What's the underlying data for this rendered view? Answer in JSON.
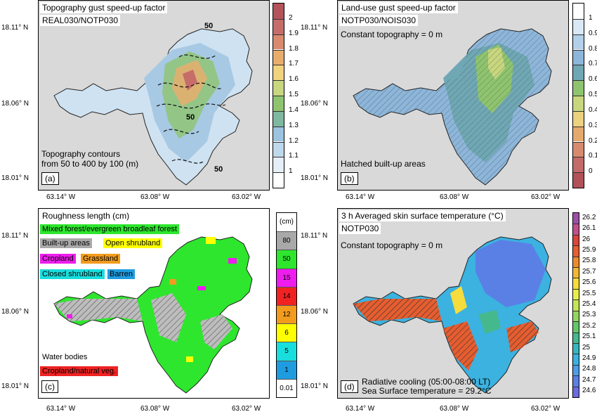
{
  "axes": {
    "lat_ticks": [
      "18.11° N",
      "18.06° N",
      "18.01° N"
    ],
    "lon_ticks": [
      "63.14° W",
      "63.08° W",
      "63.02° W"
    ]
  },
  "panels": {
    "a": {
      "title": "Topography gust speed-up factor",
      "subtitle": "REAL030/NOTP030",
      "note1": "Topography contours",
      "note2": "from 50 to 400 by 100 (m)",
      "tag": "(a)",
      "contour_label": "50",
      "colorbar": [
        "2",
        "1.9",
        "1.8",
        "1.7",
        "1.6",
        "1.5",
        "1.4",
        "1.3",
        "1.2",
        "1.1",
        "1"
      ],
      "colorbar_colors": [
        "#b4535a",
        "#c66d6a",
        "#d98a6e",
        "#e8ad6d",
        "#f1d27d",
        "#c8d77e",
        "#8fc46f",
        "#7fb8a0",
        "#9cc3df",
        "#bfd9ec",
        "#e5eff7",
        "#ffffff"
      ]
    },
    "b": {
      "title": "Land-use gust speed-up factor",
      "subtitle": "NOTP030/NOIS030",
      "note": "Constant topography = 0 m",
      "hatch_note": "Hatched built-up areas",
      "tag": "(b)",
      "colorbar": [
        "1",
        "0.9",
        "0.8",
        "0.7",
        "0.6",
        "0.5",
        "0.4",
        "0.3",
        "0.2",
        "0.1",
        "0"
      ],
      "colorbar_colors": [
        "#ffffff",
        "#d9e8f4",
        "#b2d0ea",
        "#8db6da",
        "#6fa8b4",
        "#8fc46f",
        "#c8d77e",
        "#ecd17e",
        "#e6a96d",
        "#d88a6f",
        "#c46a68",
        "#b25158"
      ]
    },
    "c": {
      "title": "Roughness length (cm)",
      "tag": "(c)",
      "legend": [
        {
          "label": "Mixed forest/evergreen broadleaf forest",
          "color": "#2ee62e"
        },
        {
          "label": "Built-up areas",
          "color": "#a9a9a9"
        },
        {
          "label": "Open shrubland",
          "color": "#ffff00"
        },
        {
          "label": "Cropland",
          "color": "#ee1cee"
        },
        {
          "label": "Grassland",
          "color": "#f29b1c"
        },
        {
          "label": "Closed shrubland",
          "color": "#19dede"
        },
        {
          "label": "Barren",
          "color": "#1f9ce0"
        },
        {
          "label": "Water bodies",
          "color": "#ffffff"
        },
        {
          "label": "Cropland/natural veg.",
          "color": "#f02222"
        }
      ],
      "unit": "(cm)",
      "colorbar": [
        "80",
        "50",
        "15",
        "14",
        "12",
        "6",
        "5",
        "1",
        "0.01"
      ],
      "colorbar_colors": [
        "#a9a9a9",
        "#2ee62e",
        "#ee1cee",
        "#f02222",
        "#f29b1c",
        "#ffff00",
        "#19dede",
        "#1f9ce0",
        "#ffffff"
      ]
    },
    "d": {
      "title": "3 h Averaged skin surface temperature (°C)",
      "subtitle": "NOTP030",
      "note": "Constant topography = 0 m",
      "note2": "Radiative cooling (05:00-08:00 LT)",
      "note3": "Sea Surface temperature = 29.2°C",
      "tag": "(d)",
      "colorbar": [
        "26.2",
        "26.1",
        "26",
        "25.9",
        "25.8",
        "25.7",
        "25.6",
        "25.5",
        "25.4",
        "25.3",
        "25.2",
        "25.1",
        "25",
        "24.9",
        "24.8",
        "24.7",
        "24.6"
      ],
      "colorbar_colors": [
        "#9e4fa6",
        "#c0508a",
        "#d9443c",
        "#e65d2f",
        "#ee8a2b",
        "#f4b732",
        "#f6dc3c",
        "#e9ee48",
        "#c3e657",
        "#93d65f",
        "#62c76a",
        "#45b98d",
        "#36b6bd",
        "#3bb2e0",
        "#4b9ee6",
        "#5a80e6",
        "#6b6be0"
      ]
    }
  }
}
